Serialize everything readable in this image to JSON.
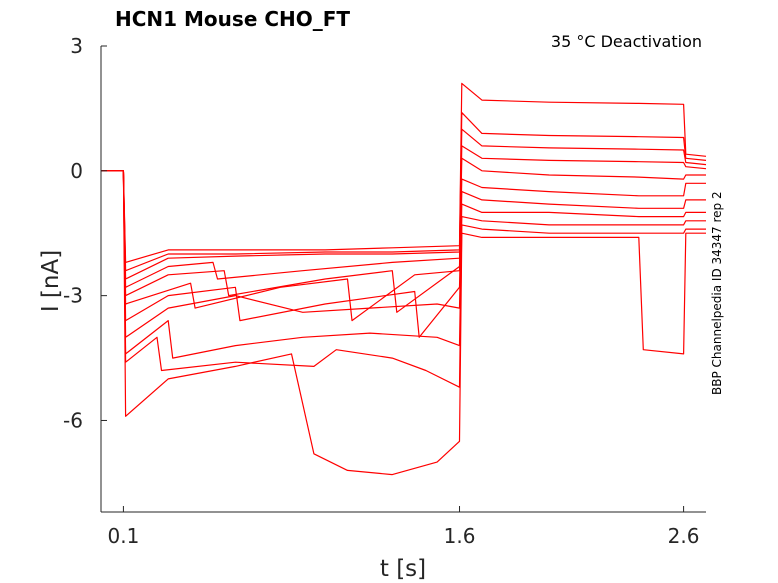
{
  "chart_data": {
    "type": "line",
    "title": "HCN1  Mouse  CHO_FT",
    "annotation": "35 °C  Deactivation",
    "side_label": "BBP Channelpedia ID 34347 rep 2",
    "xlabel": "t [s]",
    "ylabel": "I [nA]",
    "xlim": [
      0.0,
      2.7
    ],
    "ylim": [
      -8.2,
      3.0
    ],
    "xticks": [
      0.1,
      1.6,
      2.6
    ],
    "xtick_labels": [
      "0.1",
      "1.6",
      "2.6"
    ],
    "yticks": [
      3,
      0,
      -3,
      -6
    ],
    "ytick_labels": [
      "3",
      "0",
      "-3",
      "-6"
    ],
    "grid": false,
    "line_color": "#ff0000",
    "series": [
      {
        "x": [
          0.0,
          0.05,
          0.1,
          0.11,
          0.3,
          0.6,
          1.0,
          1.3,
          1.6,
          1.61,
          1.7,
          2.0,
          2.4,
          2.6,
          2.61,
          2.7
        ],
        "y": [
          0,
          0,
          0,
          -2.2,
          -1.9,
          -1.9,
          -1.9,
          -1.85,
          -1.8,
          2.1,
          1.7,
          1.65,
          1.62,
          1.6,
          0.4,
          0.35
        ]
      },
      {
        "x": [
          0.0,
          0.1,
          0.11,
          0.3,
          0.6,
          1.0,
          1.3,
          1.6,
          1.61,
          1.7,
          2.0,
          2.4,
          2.6,
          2.61,
          2.7
        ],
        "y": [
          0,
          0,
          -2.4,
          -2.0,
          -2.0,
          -1.95,
          -1.95,
          -1.9,
          1.4,
          0.9,
          0.85,
          0.82,
          0.8,
          0.3,
          0.25
        ]
      },
      {
        "x": [
          0.0,
          0.1,
          0.11,
          0.3,
          0.6,
          1.0,
          1.3,
          1.6,
          1.61,
          1.7,
          2.0,
          2.4,
          2.6,
          2.61,
          2.7
        ],
        "y": [
          0,
          0,
          -2.6,
          -2.1,
          -2.05,
          -2.0,
          -2.0,
          -1.95,
          1.0,
          0.6,
          0.55,
          0.52,
          0.5,
          0.2,
          0.15
        ]
      },
      {
        "x": [
          0.0,
          0.1,
          0.11,
          0.3,
          0.5,
          0.52,
          0.9,
          1.3,
          1.6,
          1.61,
          1.7,
          2.0,
          2.4,
          2.6,
          2.61,
          2.7
        ],
        "y": [
          0,
          0,
          -2.8,
          -2.3,
          -2.2,
          -2.6,
          -2.4,
          -2.2,
          -2.1,
          0.6,
          0.3,
          0.25,
          0.22,
          0.2,
          0.1,
          0.05
        ]
      },
      {
        "x": [
          0.0,
          0.1,
          0.11,
          0.3,
          0.55,
          0.57,
          1.0,
          1.3,
          1.32,
          1.6,
          1.61,
          1.7,
          2.0,
          2.4,
          2.6,
          2.61,
          2.7
        ],
        "y": [
          0,
          0,
          -3.0,
          -2.5,
          -2.4,
          -3.0,
          -2.6,
          -2.4,
          -3.4,
          -2.3,
          0.3,
          0.0,
          -0.1,
          -0.15,
          -0.2,
          -0.1,
          -0.1
        ]
      },
      {
        "x": [
          0.0,
          0.1,
          0.11,
          0.4,
          0.42,
          0.8,
          1.1,
          1.12,
          1.4,
          1.6,
          1.61,
          1.7,
          2.0,
          2.4,
          2.6,
          2.61,
          2.7
        ],
        "y": [
          0,
          0,
          -3.2,
          -2.7,
          -3.3,
          -2.8,
          -2.6,
          -3.6,
          -2.5,
          -2.4,
          -0.2,
          -0.4,
          -0.5,
          -0.6,
          -0.6,
          -0.3,
          -0.3
        ]
      },
      {
        "x": [
          0.0,
          0.1,
          0.11,
          0.3,
          0.6,
          0.62,
          1.0,
          1.4,
          1.42,
          1.6,
          1.61,
          1.7,
          2.0,
          2.4,
          2.6,
          2.61,
          2.7
        ],
        "y": [
          0,
          0,
          -3.6,
          -3.0,
          -2.8,
          -3.6,
          -3.2,
          -2.9,
          -4.0,
          -2.8,
          -0.5,
          -0.7,
          -0.8,
          -0.9,
          -0.9,
          -0.7,
          -0.7
        ]
      },
      {
        "x": [
          0.0,
          0.1,
          0.11,
          0.3,
          0.6,
          0.9,
          1.2,
          1.5,
          1.6,
          1.61,
          1.7,
          2.0,
          2.4,
          2.6,
          2.61,
          2.7
        ],
        "y": [
          0,
          0,
          -4.0,
          -3.3,
          -3.0,
          -3.4,
          -3.3,
          -3.2,
          -3.3,
          -0.8,
          -1.0,
          -1.0,
          -1.1,
          -1.1,
          -1.0,
          -1.0
        ]
      },
      {
        "x": [
          0.0,
          0.1,
          0.11,
          0.3,
          0.32,
          0.6,
          0.9,
          1.2,
          1.5,
          1.6,
          1.61,
          1.7,
          2.0,
          2.4,
          2.6,
          2.61,
          2.7
        ],
        "y": [
          0,
          0,
          -4.4,
          -3.6,
          -4.5,
          -4.2,
          -4.0,
          -3.9,
          -4.0,
          -4.2,
          -1.1,
          -1.2,
          -1.3,
          -1.3,
          -1.3,
          -1.2,
          -1.2
        ]
      },
      {
        "x": [
          0.0,
          0.1,
          0.11,
          0.25,
          0.27,
          0.6,
          0.95,
          1.05,
          1.3,
          1.45,
          1.6,
          1.61,
          1.7,
          2.0,
          2.3,
          2.4,
          2.6,
          2.61,
          2.7
        ],
        "y": [
          0,
          0,
          -4.6,
          -4.0,
          -4.8,
          -4.6,
          -4.7,
          -4.3,
          -4.5,
          -4.8,
          -5.2,
          -1.3,
          -1.4,
          -1.5,
          -1.5,
          -1.5,
          -1.5,
          -1.4,
          -1.4
        ]
      },
      {
        "x": [
          0.0,
          0.1,
          0.11,
          0.3,
          0.6,
          0.85,
          0.9,
          0.95,
          1.1,
          1.3,
          1.5,
          1.6,
          1.61,
          1.7,
          2.0,
          2.3,
          2.4,
          2.42,
          2.6,
          2.61,
          2.7
        ],
        "y": [
          0,
          0,
          -5.9,
          -5.0,
          -4.7,
          -4.4,
          -5.6,
          -6.8,
          -7.2,
          -7.3,
          -7.0,
          -6.5,
          -1.5,
          -1.6,
          -1.6,
          -1.6,
          -1.6,
          -4.3,
          -4.4,
          -1.5,
          -1.5
        ]
      }
    ]
  }
}
